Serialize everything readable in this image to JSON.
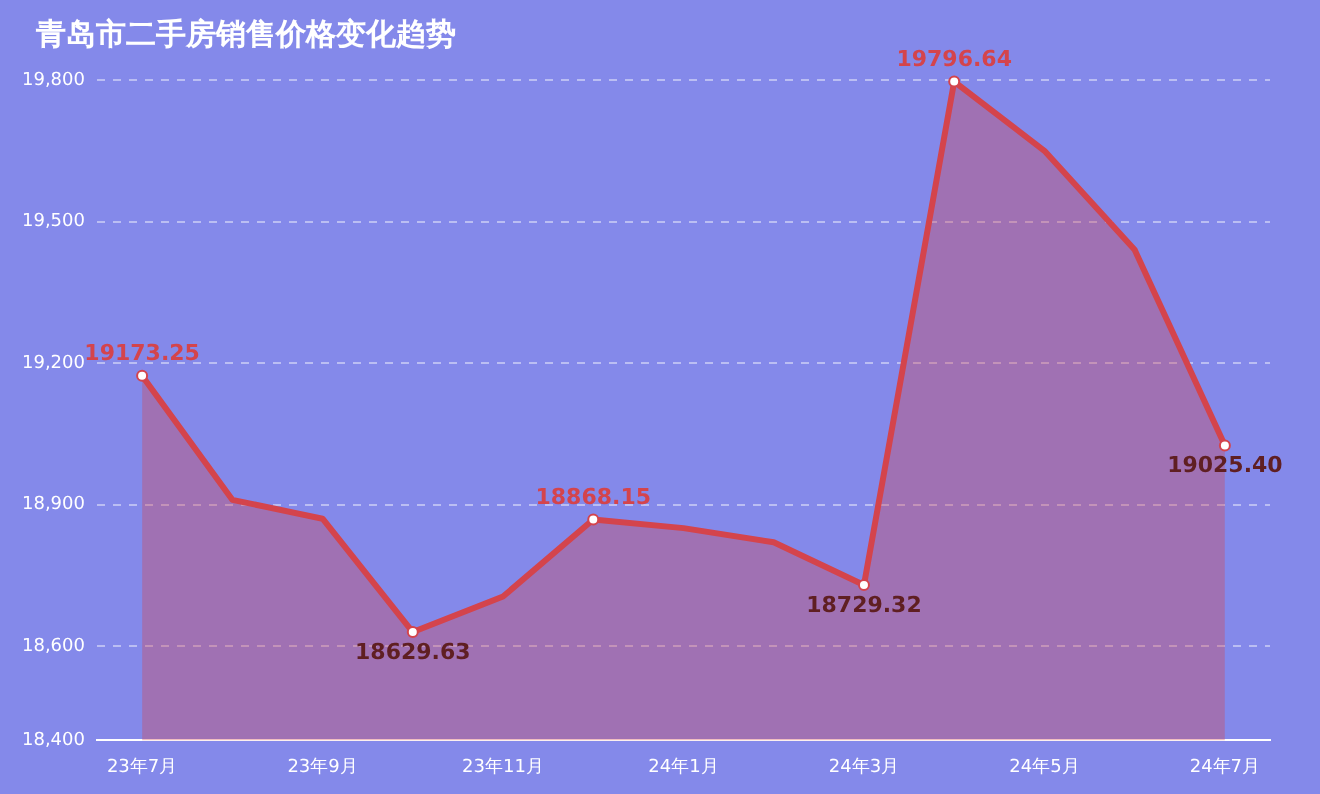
{
  "chart_data": {
    "type": "area",
    "title": "青岛市二手房销售价格变化趋势",
    "categories": [
      "23年7月",
      null,
      "23年9月",
      null,
      "23年11月",
      null,
      "24年1月",
      null,
      "24年3月",
      null,
      "24年5月",
      null,
      "24年7月"
    ],
    "series": [
      {
        "color": "#d4444c",
        "values": [
          19173.25,
          18910,
          18870,
          18629.63,
          18705,
          18868.15,
          18850,
          18820,
          18729.32,
          19796.64,
          19650,
          19440,
          19025.4
        ],
        "value_labels": [
          "19173.25",
          null,
          null,
          "18629.63",
          null,
          "18868.15",
          null,
          null,
          "18729.32",
          "19796.64",
          null,
          null,
          "19025.40"
        ]
      }
    ],
    "ylim": [
      18400,
      19800
    ],
    "yticks": [
      {
        "value": 18400,
        "label": "18,400"
      },
      {
        "value": 18600,
        "label": "18,600"
      },
      {
        "value": 18900,
        "label": "18,900"
      },
      {
        "value": 19200,
        "label": "19,200"
      },
      {
        "value": 19500,
        "label": "19,500"
      },
      {
        "value": 19800,
        "label": "19,800"
      }
    ],
    "grid": "y",
    "legend": false,
    "line_style": "solid"
  }
}
